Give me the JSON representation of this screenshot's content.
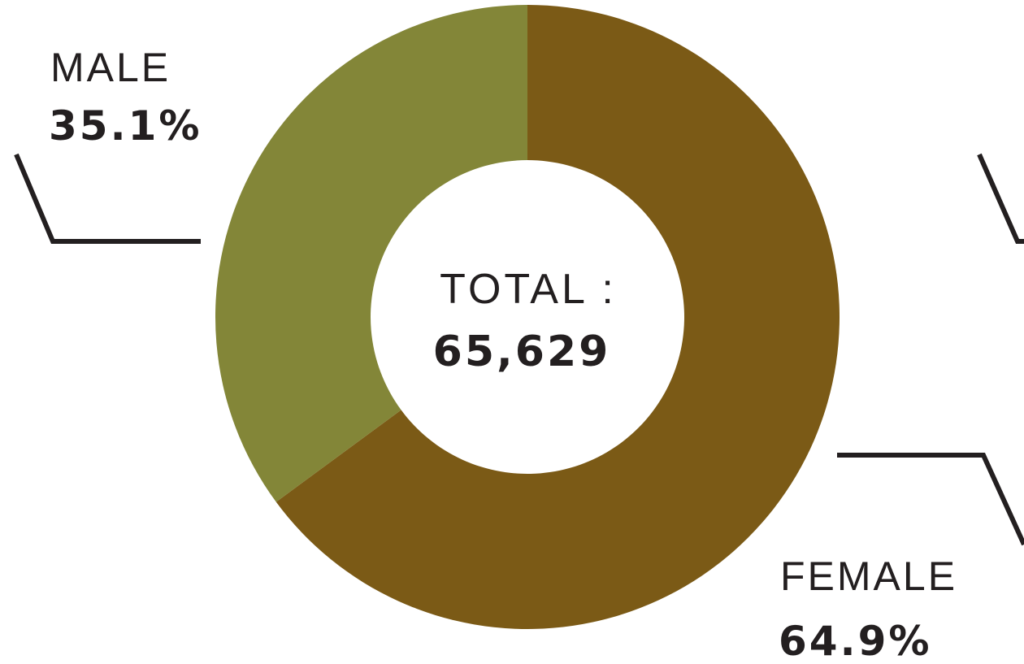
{
  "chart_data": {
    "type": "pie",
    "variant": "donut",
    "start_angle_deg": 0,
    "direction": "clockwise",
    "categories": [
      "FEMALE",
      "MALE"
    ],
    "values": [
      64.9,
      35.1
    ],
    "value_labels": [
      "64.9%",
      "35.1%"
    ],
    "colors": [
      "#7b5a16",
      "#838638"
    ],
    "center": {
      "label": "TOTAL :",
      "value": "65,629"
    },
    "legend": "none"
  }
}
